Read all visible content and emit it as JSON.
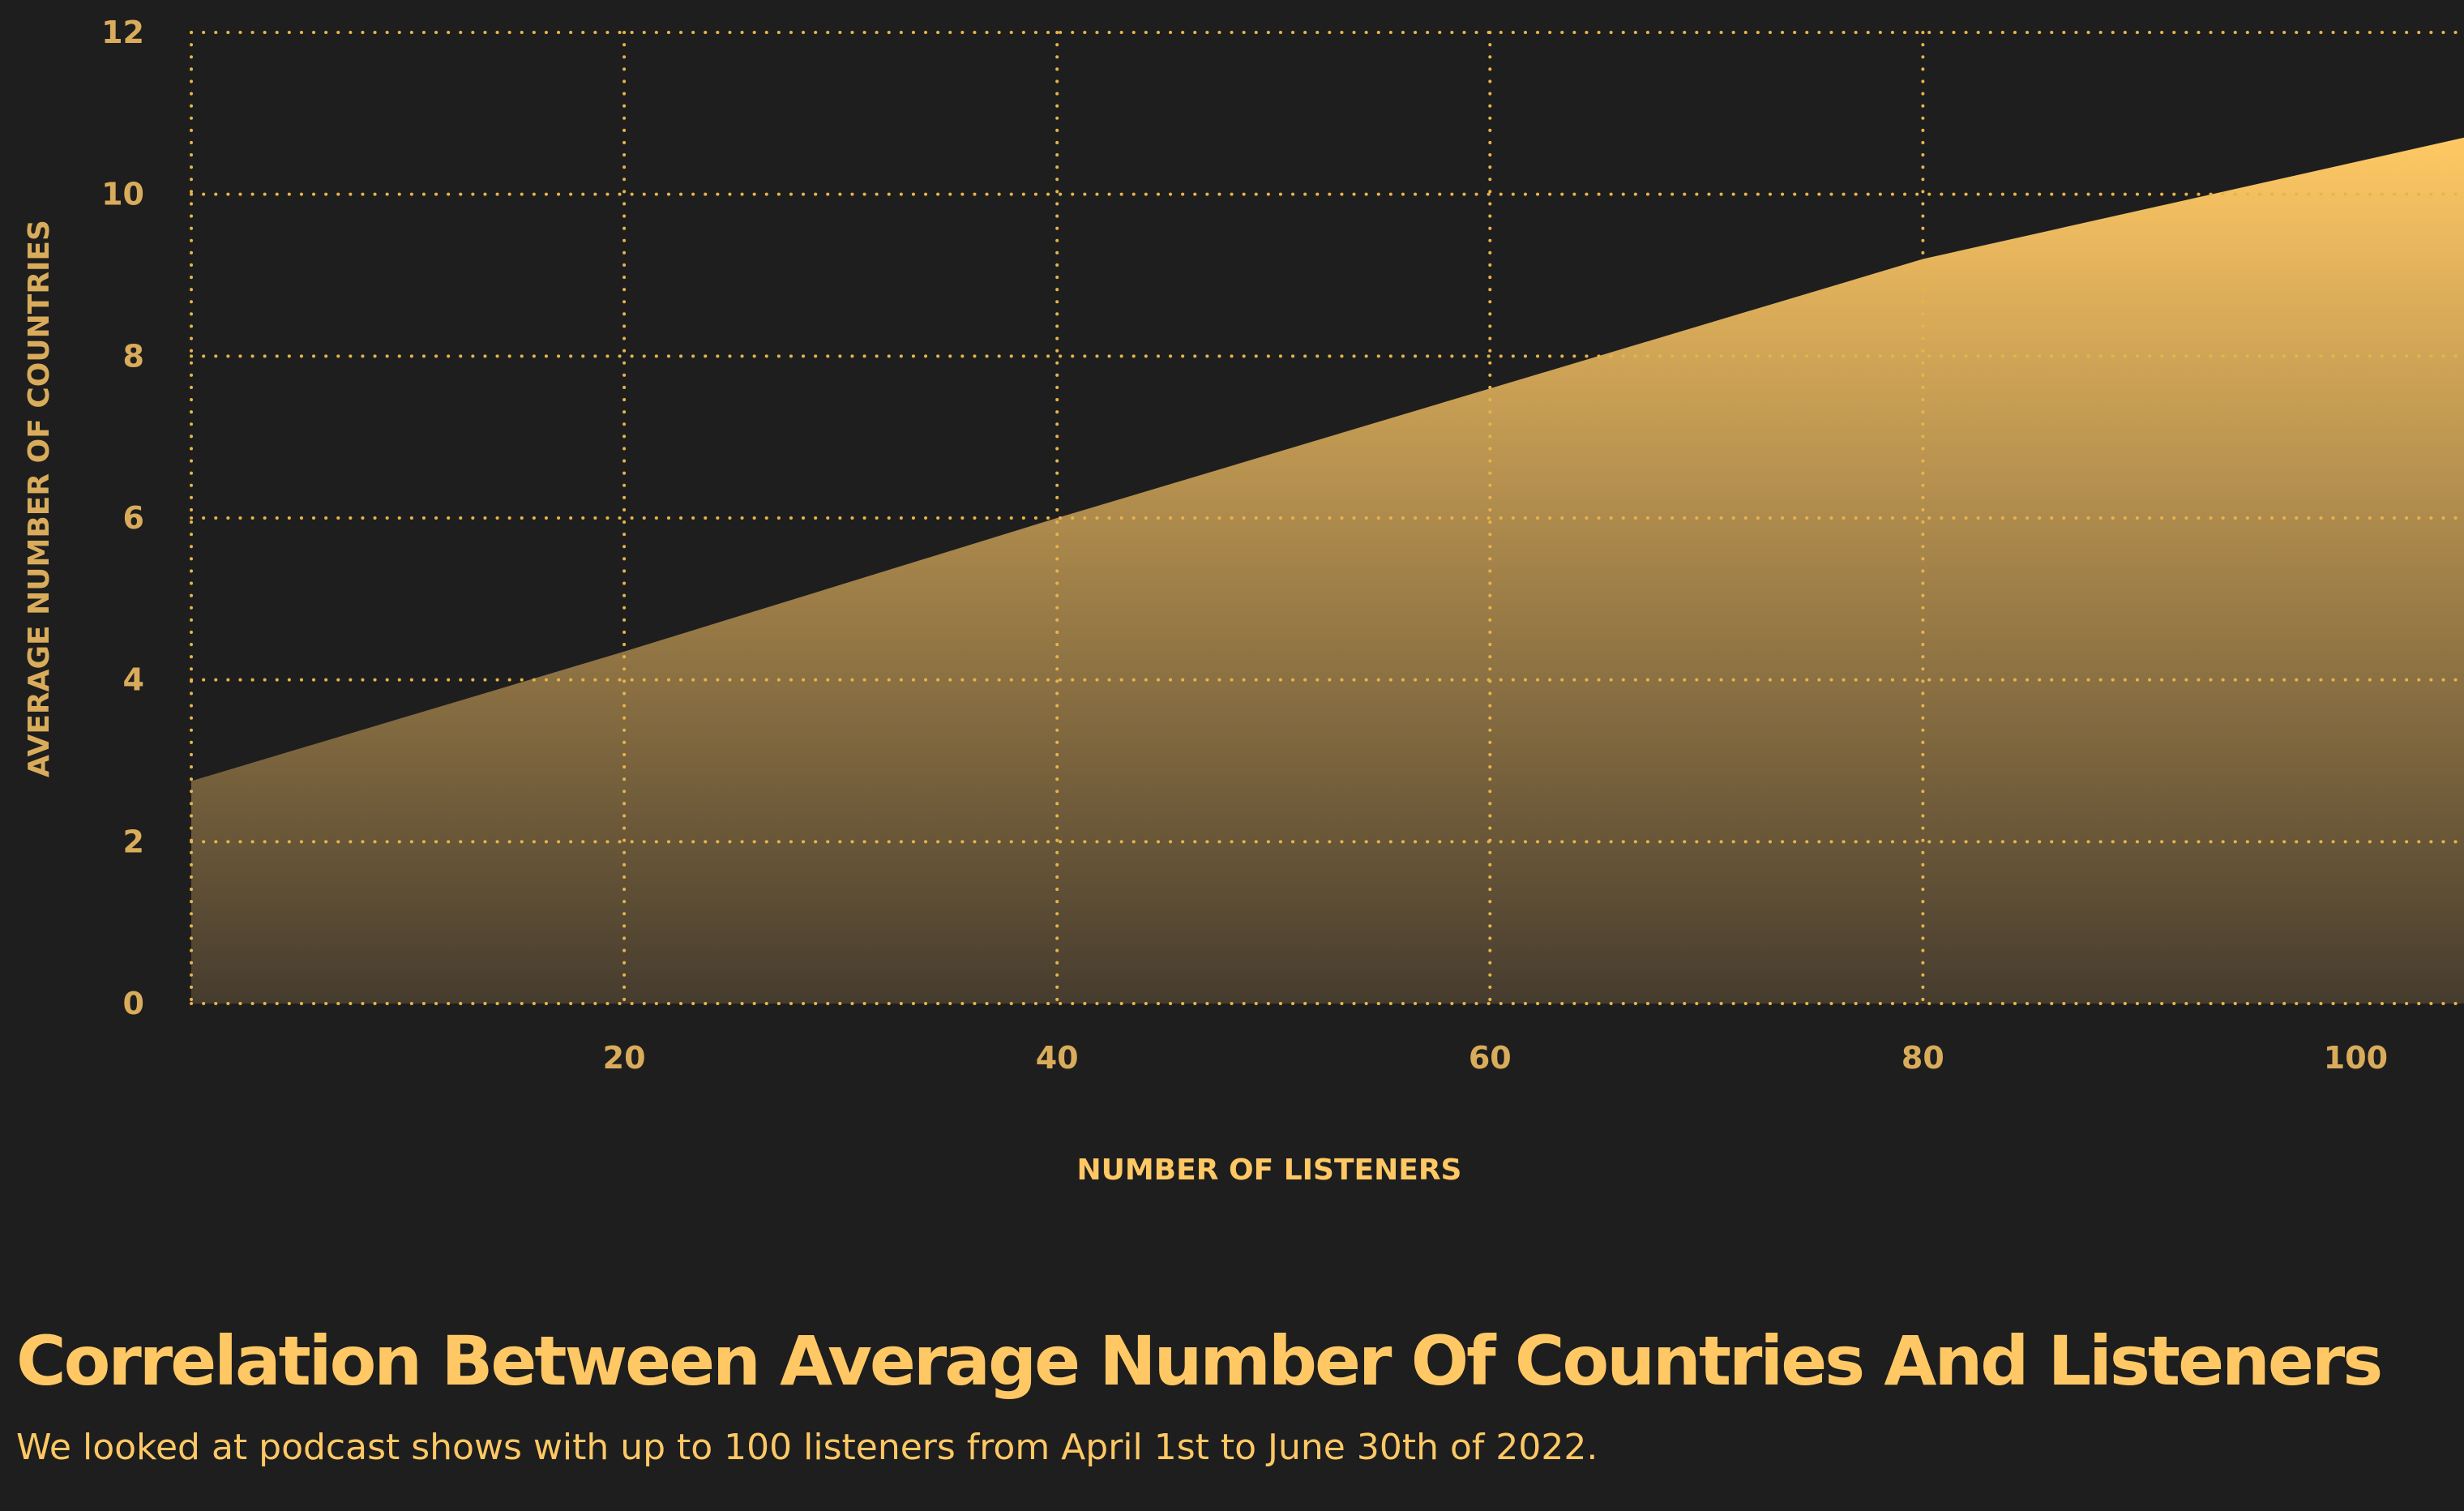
{
  "colors": {
    "background": "#1e1e1e",
    "accent": "#ffc864",
    "tick_text": "#d9ac5b",
    "grid": "#e6b44c"
  },
  "chart_data": {
    "type": "area",
    "title": "Correlation Between Average Number Of Countries And Listeners",
    "subtitle": "We looked at podcast shows with up to 100 listeners from April 1st to June 30th of 2022.",
    "xlabel": "NUMBER OF LISTENERS",
    "ylabel": "AVERAGE NUMBER OF  COUNTRIES",
    "xlim": [
      0,
      100
    ],
    "ylim": [
      0,
      12
    ],
    "x_ticks": [
      {
        "value": 20,
        "label": "20"
      },
      {
        "value": 40,
        "label": "40"
      },
      {
        "value": 60,
        "label": "60"
      },
      {
        "value": 80,
        "label": "80"
      },
      {
        "value": 100,
        "label": "100"
      }
    ],
    "y_ticks": [
      {
        "value": 0,
        "label": "0"
      },
      {
        "value": 2,
        "label": "2"
      },
      {
        "value": 4,
        "label": "4"
      },
      {
        "value": 6,
        "label": "6"
      },
      {
        "value": 8,
        "label": "8"
      },
      {
        "value": 10,
        "label": "10"
      },
      {
        "value": 12,
        "label": "12"
      }
    ],
    "grid": true,
    "series": [
      {
        "x": [
          0,
          20,
          40,
          60,
          80,
          100
        ],
        "y": [
          2.75,
          4.35,
          6.0,
          7.6,
          9.2,
          10.4
        ]
      }
    ]
  }
}
